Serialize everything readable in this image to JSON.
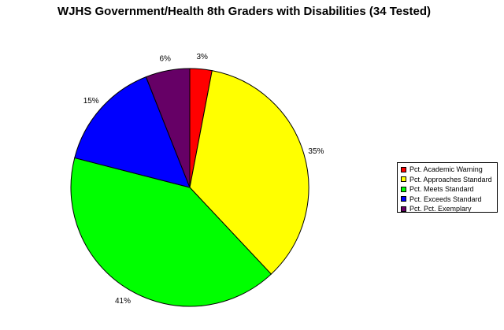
{
  "chart_data": {
    "type": "pie",
    "title": "WJHS Government/Health 8th Graders with Disabilities (34 Tested)",
    "slices": [
      {
        "label": "Pct. Academic Warning",
        "value": 3,
        "value_label": "3%",
        "color": "#ff0000"
      },
      {
        "label": "Pct. Approaches Standard",
        "value": 35,
        "value_label": "35%",
        "color": "#ffff00"
      },
      {
        "label": "Pct. Meets Standard",
        "value": 41,
        "value_label": "41%",
        "color": "#00ff00"
      },
      {
        "label": "Pct. Exceeds Standard",
        "value": 15,
        "value_label": "15%",
        "color": "#0000ff"
      },
      {
        "label": "Pct. Pct. Exemplary",
        "value": 6,
        "value_label": "6%",
        "color": "#660066"
      }
    ],
    "legend_position": "right",
    "start_angle": "top",
    "direction": "clockwise"
  }
}
